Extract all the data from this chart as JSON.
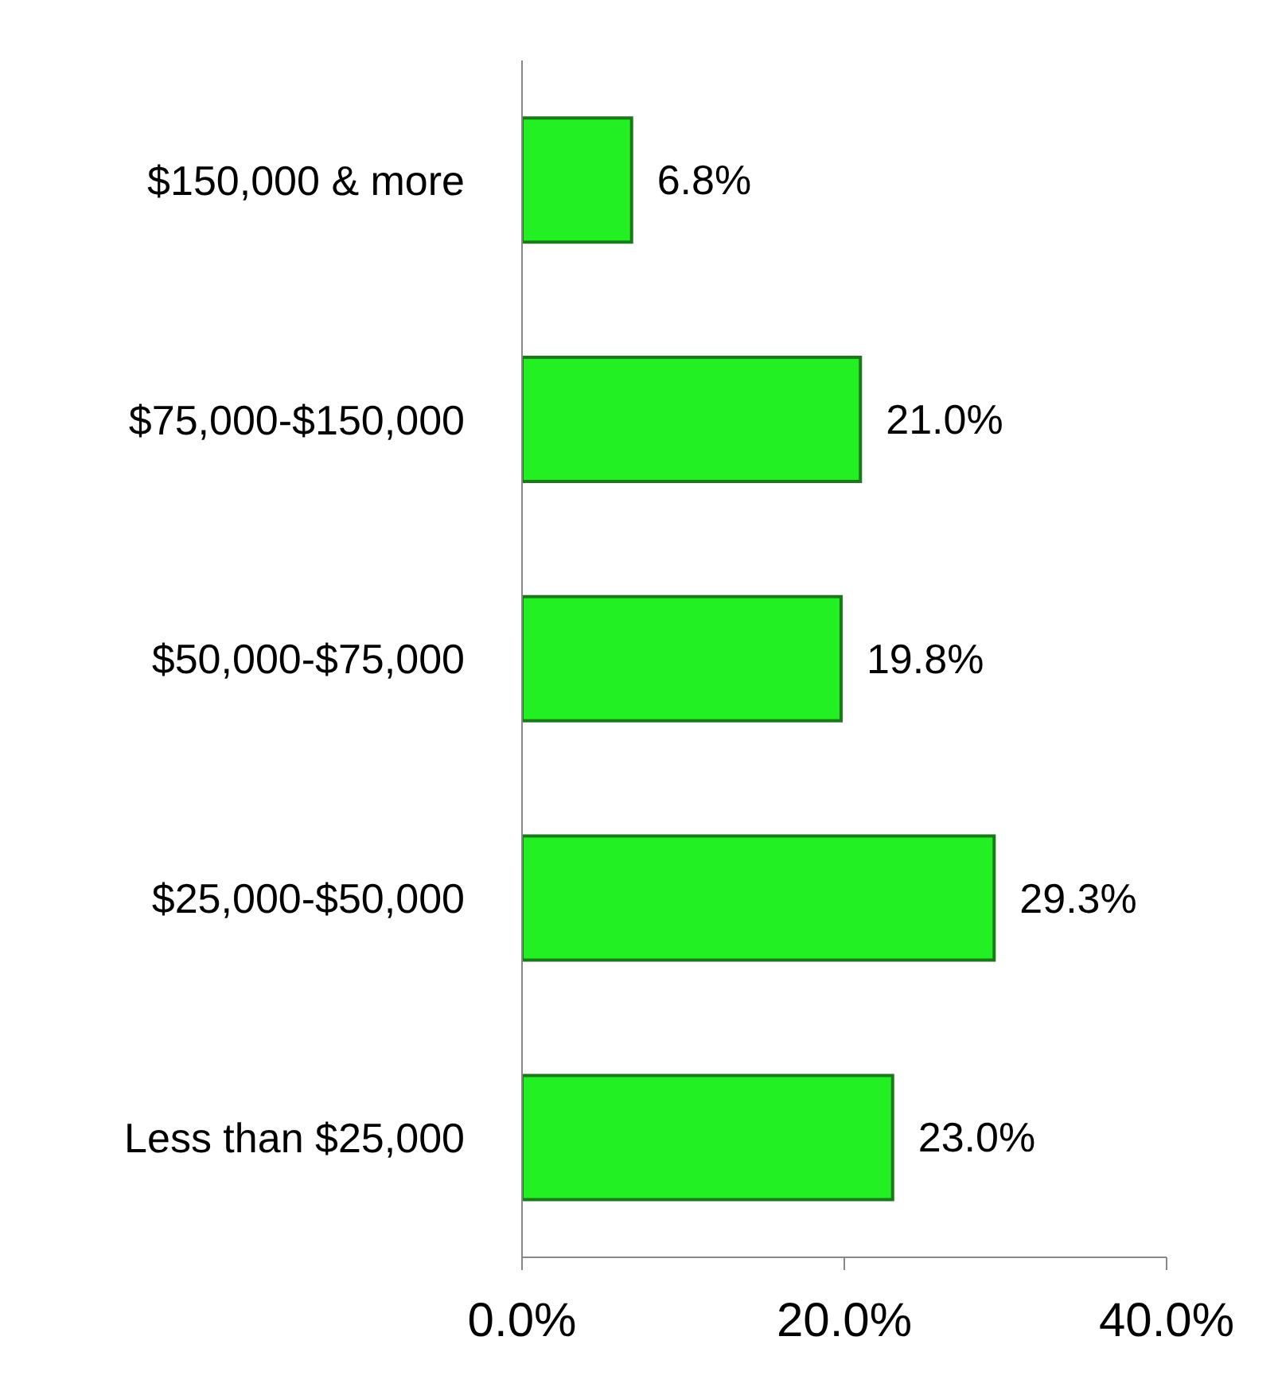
{
  "chart_data": {
    "type": "bar",
    "orientation": "horizontal",
    "categories": [
      "$150,000 & more",
      "$75,000-$150,000",
      "$50,000-$75,000",
      "$25,000-$50,000",
      "Less than $25,000"
    ],
    "values": [
      6.8,
      21.0,
      19.8,
      29.3,
      23.0
    ],
    "value_labels": [
      "6.8%",
      "21.0%",
      "19.8%",
      "29.3%",
      "23.0%"
    ],
    "color": "#22f022",
    "xlim": [
      0,
      40
    ],
    "xticks": [
      {
        "value": 0,
        "label": "0.0%"
      },
      {
        "value": 20,
        "label": "20.0%"
      },
      {
        "value": 40,
        "label": "40.0%"
      }
    ]
  }
}
